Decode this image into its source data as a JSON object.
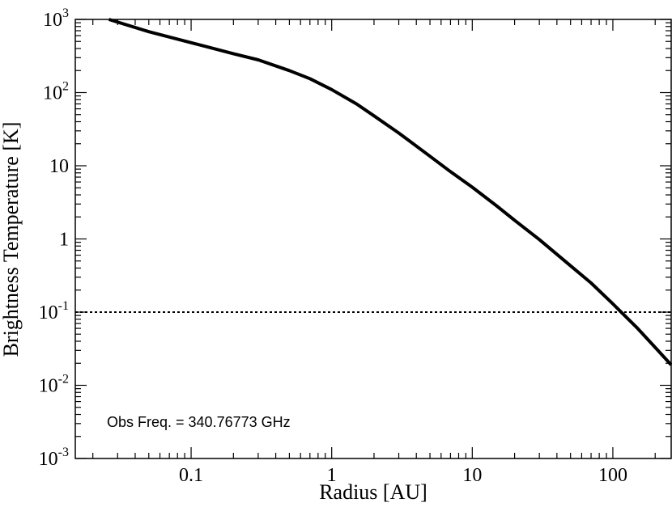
{
  "chart_data": {
    "type": "line",
    "title": "",
    "xlabel": "Radius [AU]",
    "ylabel": "Brightness Temperature [K]",
    "xscale": "log",
    "yscale": "log",
    "xlim": [
      0.015,
      260
    ],
    "ylim": [
      0.001,
      1000
    ],
    "grid": false,
    "x_ticks": [
      {
        "value": 0.1,
        "label": "0.1"
      },
      {
        "value": 1,
        "label": "1"
      },
      {
        "value": 10,
        "label": "10"
      },
      {
        "value": 100,
        "label": "100"
      }
    ],
    "y_ticks": [
      {
        "value": 1000,
        "base": "10",
        "exp": "3"
      },
      {
        "value": 100,
        "base": "10",
        "exp": "2"
      },
      {
        "value": 10,
        "base": "10",
        "exp": ""
      },
      {
        "value": 1,
        "base": "1",
        "exp": ""
      },
      {
        "value": 0.1,
        "base": "10",
        "exp": "-1"
      },
      {
        "value": 0.01,
        "base": "10",
        "exp": "-2"
      },
      {
        "value": 0.001,
        "base": "10",
        "exp": "-3"
      }
    ],
    "series": [
      {
        "style": "solid",
        "color": "#000000",
        "x": [
          0.026,
          0.05,
          0.1,
          0.2,
          0.3,
          0.5,
          0.7,
          1,
          1.5,
          2,
          3,
          5,
          7,
          10,
          15,
          20,
          30,
          50,
          70,
          100,
          150,
          200,
          260
        ],
        "y": [
          1000,
          680,
          480,
          340,
          280,
          200,
          155,
          110,
          70,
          48,
          28,
          13.5,
          8.3,
          5.1,
          2.8,
          1.8,
          0.98,
          0.43,
          0.25,
          0.13,
          0.06,
          0.033,
          0.019
        ]
      },
      {
        "style": "dotted",
        "color": "#000000",
        "x": [
          0.015,
          260
        ],
        "y": [
          0.1,
          0.1
        ]
      }
    ],
    "annotations": [
      {
        "text": "Obs Freq. = 340.76773 GHz"
      }
    ]
  }
}
